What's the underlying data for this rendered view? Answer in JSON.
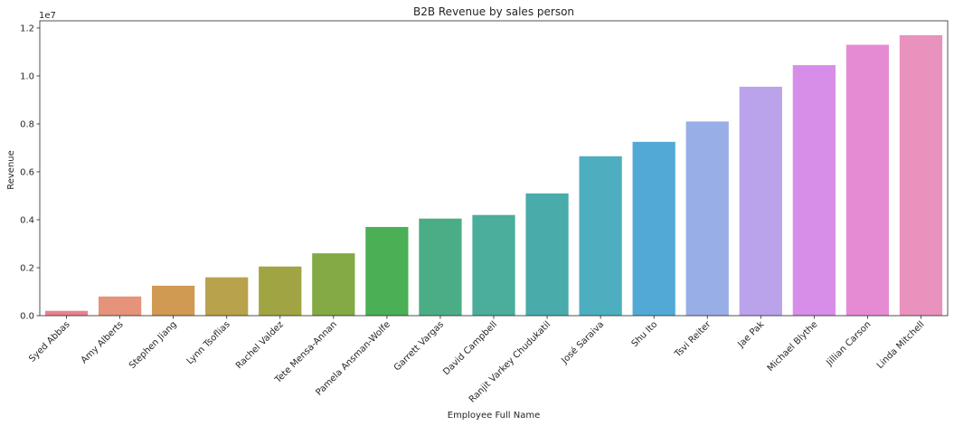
{
  "chart_data": {
    "type": "bar",
    "title": "B2B Revenue by sales person",
    "xlabel": "Employee Full Name",
    "ylabel": "Revenue",
    "y_offset_label": "1e7",
    "ylim": [
      0,
      1.23
    ],
    "yticks": [
      0.0,
      0.2,
      0.4,
      0.6,
      0.8,
      1.0,
      1.2
    ],
    "ytick_labels": [
      "0.0",
      "0.2",
      "0.4",
      "0.6",
      "0.8",
      "1.0",
      "1.2"
    ],
    "grid": false,
    "categories": [
      "Syed Abbas",
      "Amy Alberts",
      "Stephen Jiang",
      "Lynn Tsoflias",
      "Rachel Valdez",
      "Tete Mensa-Annan",
      "Pamela Ansman-Wolfe",
      "Garrett Vargas",
      "David Campbell",
      "Ranjit Varkey Chudukatil",
      "José Saraiva",
      "Shu Ito",
      "Tsvi Reiter",
      "Jae Pak",
      "Michael Blythe",
      "Jillian Carson",
      "Linda Mitchell"
    ],
    "values": [
      0.02,
      0.08,
      0.125,
      0.16,
      0.205,
      0.26,
      0.37,
      0.405,
      0.42,
      0.51,
      0.665,
      0.725,
      0.81,
      0.955,
      1.045,
      1.13,
      1.17
    ],
    "colors": [
      "#e8828e",
      "#e5937a",
      "#d09a52",
      "#b8a24b",
      "#a1a443",
      "#83aa44",
      "#4aaf55",
      "#4bad86",
      "#4bad9b",
      "#4aabab",
      "#4daebf",
      "#53a9d6",
      "#98aee6",
      "#baa3ea",
      "#d68ee8",
      "#e58bd3",
      "#e892bd"
    ]
  }
}
